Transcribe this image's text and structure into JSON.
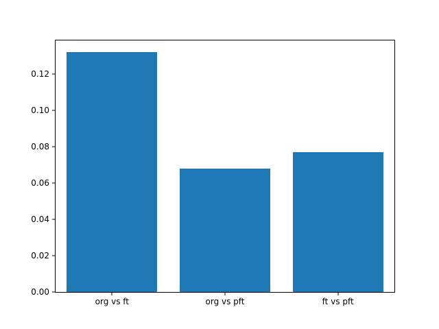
{
  "chart_data": {
    "type": "bar",
    "title": "",
    "xlabel": "",
    "ylabel": "",
    "categories": [
      "org vs ft",
      "org vs pft",
      "ft vs pft"
    ],
    "values": [
      0.132,
      0.068,
      0.077
    ],
    "ylim": [
      0,
      0.1386
    ],
    "yticks": [
      0.0,
      0.02,
      0.04,
      0.06,
      0.08,
      0.1,
      0.12
    ],
    "ytick_labels": [
      "0.00",
      "0.02",
      "0.04",
      "0.06",
      "0.08",
      "0.10",
      "0.12"
    ],
    "bar_color": "#1f77b4",
    "bar_width_fraction": 0.8,
    "background_color": "#ffffff",
    "spine_color": "#000000",
    "grid": false,
    "legend": false
  }
}
